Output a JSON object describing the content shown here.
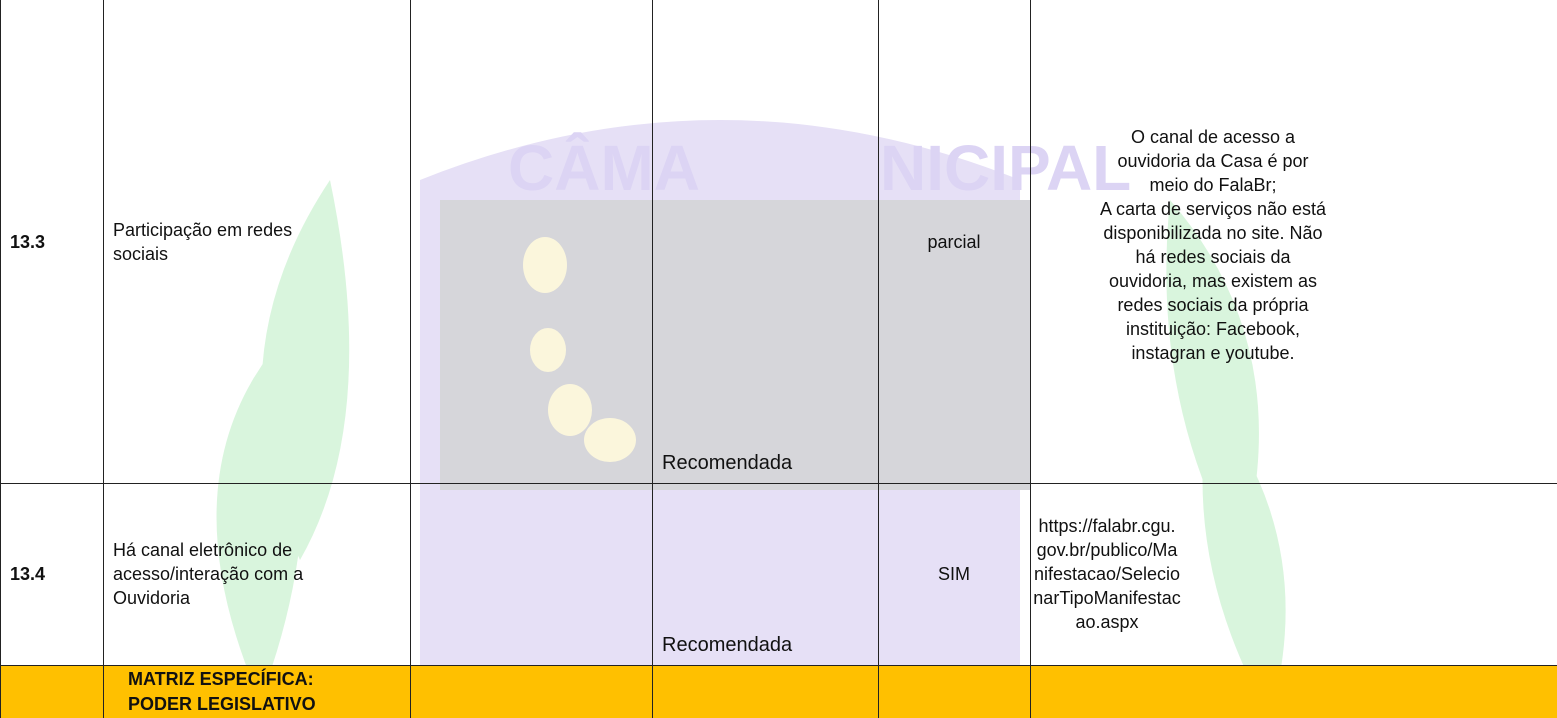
{
  "watermark": {
    "left": "CÂMA",
    "right": "NICIPAL"
  },
  "table": {
    "rows": [
      {
        "id": "13.3",
        "item": [
          "Participação em redes",
          "sociais"
        ],
        "classification": "Recomendada",
        "status": "parcial",
        "notes": [
          "O canal de acesso a",
          "ouvidoria da Casa é por",
          "meio do FalaBr;",
          "A carta de serviços não está",
          "disponibilizada no site. Não",
          "há redes sociais da",
          "ouvidoria, mas existem as",
          "redes sociais da própria",
          "instituição: Facebook,",
          "instagran e youtube."
        ]
      },
      {
        "id": "13.4",
        "item": [
          "Há canal eletrônico de",
          "acesso/interação com a",
          "Ouvidoria"
        ],
        "classification": "Recomendada",
        "status": "SIM",
        "link": [
          "https://falabr.cgu.",
          "gov.br/publico/Ma",
          "nifestacao/Selecio",
          "narTipoManifestac",
          "ao.aspx"
        ]
      }
    ],
    "section": [
      "MATRIZ ESPECÍFICA:",
      "PODER LEGISLATIVO"
    ]
  }
}
